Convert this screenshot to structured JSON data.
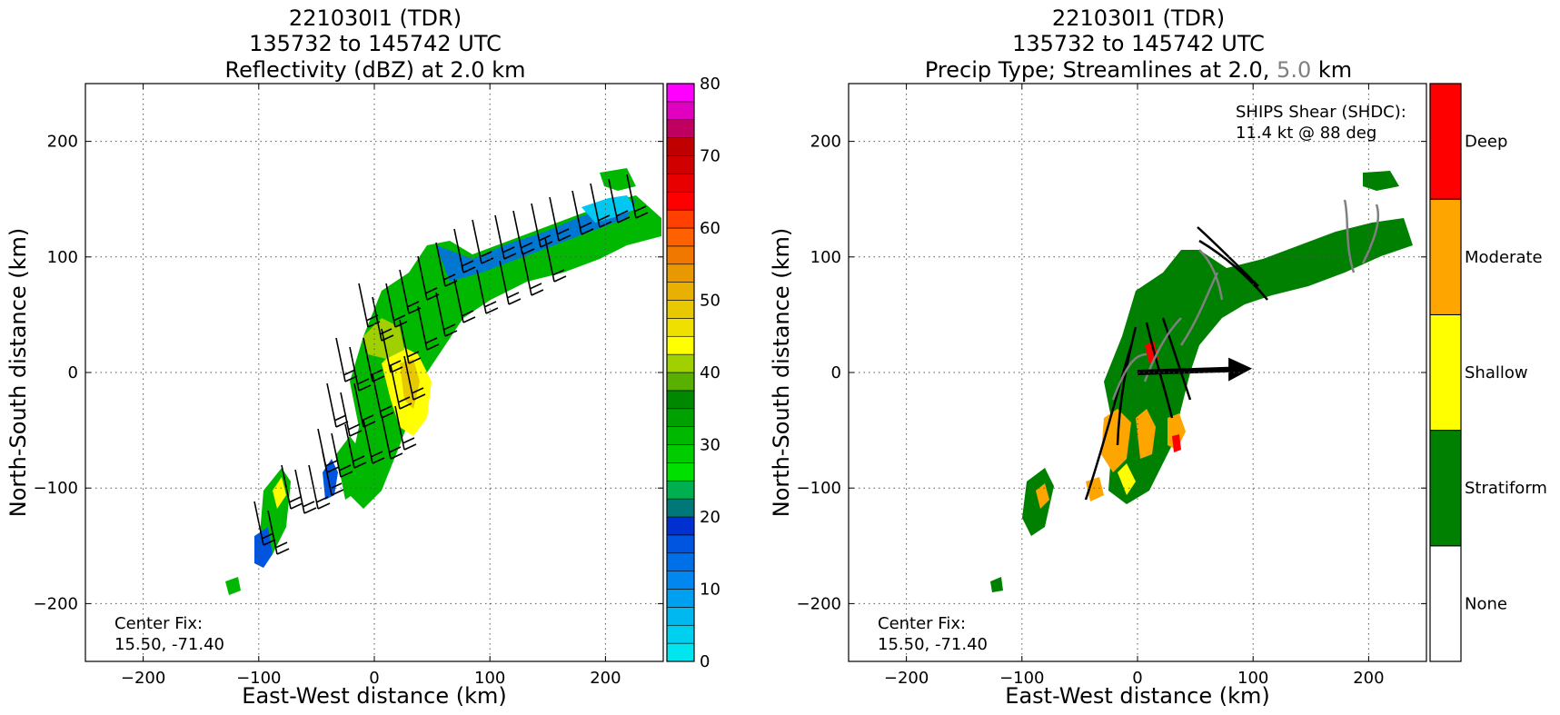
{
  "chart_data": [
    {
      "type": "heatmap",
      "title_lines": [
        "221030I1 (TDR)",
        "135732 to 145742 UTC",
        "Reflectivity (dBZ) at 2.0 km"
      ],
      "xlabel": "East-West distance (km)",
      "ylabel": "North-South distance (km)",
      "xlim": [
        -250,
        250
      ],
      "ylim": [
        -250,
        250
      ],
      "xticks": [
        -200,
        -100,
        0,
        100,
        200
      ],
      "yticks": [
        -200,
        -100,
        0,
        100,
        200
      ],
      "grid": true,
      "annotation": [
        "Center Fix:",
        "15.50, -71.40"
      ],
      "colorbar": {
        "min": 0,
        "max": 80,
        "step": 2.5,
        "ticks": [
          0,
          10,
          20,
          30,
          40,
          50,
          60,
          70,
          80
        ],
        "colors": [
          "#00e5ee",
          "#00d0f0",
          "#00b8f0",
          "#00a0f0",
          "#0088f0",
          "#0070e8",
          "#0055e0",
          "#0030d0",
          "#007878",
          "#00b050",
          "#00e000",
          "#00cc00",
          "#00b800",
          "#00a000",
          "#008800",
          "#5ab000",
          "#a0d000",
          "#ffff00",
          "#f0e000",
          "#e8c800",
          "#e8b000",
          "#e89800",
          "#f07800",
          "#ff6000",
          "#ff4000",
          "#ff0000",
          "#e80000",
          "#d00000",
          "#c00000",
          "#c00060",
          "#e000c0",
          "#ff00ff",
          "#d040e8",
          "#a050c8",
          "#704090",
          "#301030",
          "#000000"
        ]
      },
      "series_description": "Radar reflectivity shading with wind barbs",
      "wind_barbs_note": "black wind barbs over echo region"
    },
    {
      "type": "heatmap",
      "title_lines": [
        "221030I1 (TDR)",
        "135732 to 145742 UTC",
        "Precip Type; Streamlines at 2.0, ",
        "5.0",
        " km"
      ],
      "xlabel": "East-West distance (km)",
      "ylabel": "North-South distance (km)",
      "xlim": [
        -250,
        250
      ],
      "ylim": [
        -250,
        250
      ],
      "xticks": [
        -200,
        -100,
        0,
        100,
        200
      ],
      "yticks": [
        -200,
        -100,
        0,
        100,
        200
      ],
      "grid": true,
      "annotation": [
        "Center Fix:",
        "15.50, -71.40"
      ],
      "shear_text": [
        "SHIPS Shear (SHDC):",
        "11.4 kt @ 88 deg"
      ],
      "shear": {
        "speed_kt": 11.4,
        "direction_deg": 88
      },
      "categories": [
        "None",
        "Stratiform",
        "Shallow",
        "Moderate",
        "Deep"
      ],
      "category_colors": [
        "#ffffff",
        "#008000",
        "#ffff00",
        "#ffa500",
        "#ff0000"
      ],
      "streamline_colors": {
        "2.0 km": "#000000",
        "5.0 km": "#808080"
      }
    }
  ],
  "colors": {
    "stratiform": "#008000",
    "shallow": "#ffff00",
    "moderate": "#ffa500",
    "deep": "#ff0000"
  }
}
